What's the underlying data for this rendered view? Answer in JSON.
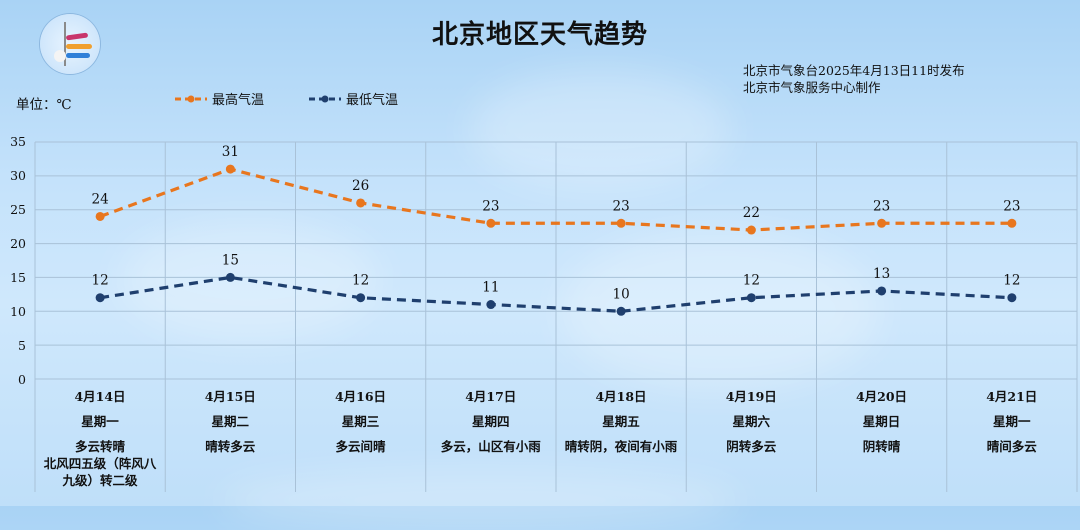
{
  "header": {
    "title": "北京地区天气趋势",
    "issuer_line1": "北京市气象台2025年4月13日11时发布",
    "issuer_line2": "北京市气象服务中心制作",
    "unit_label": "单位：℃",
    "logo": "meteorological-service-logo"
  },
  "legend": {
    "high_label": "最高气温",
    "low_label": "最低气温"
  },
  "colors": {
    "high": "#e8761e",
    "low": "#1f3f6e",
    "grid": "#a9c2d8"
  },
  "axis": {
    "y_ticks": [
      "35",
      "30",
      "25",
      "20",
      "15",
      "10",
      "5",
      "0"
    ]
  },
  "days": [
    {
      "date": "4月14日",
      "weekday": "星期一",
      "weather": "多云转晴",
      "wind": [
        "北风四五级（阵风八",
        "九级）转二级"
      ]
    },
    {
      "date": "4月15日",
      "weekday": "星期二",
      "weather": "晴转多云",
      "wind": []
    },
    {
      "date": "4月16日",
      "weekday": "星期三",
      "weather": "多云间晴",
      "wind": []
    },
    {
      "date": "4月17日",
      "weekday": "星期四",
      "weather": "多云，山区有小雨",
      "wind": []
    },
    {
      "date": "4月18日",
      "weekday": "星期五",
      "weather": "晴转阴，夜间有小雨",
      "wind": []
    },
    {
      "date": "4月19日",
      "weekday": "星期六",
      "weather": "阴转多云",
      "wind": []
    },
    {
      "date": "4月20日",
      "weekday": "星期日",
      "weather": "阴转晴",
      "wind": []
    },
    {
      "date": "4月21日",
      "weekday": "星期一",
      "weather": "晴间多云",
      "wind": []
    }
  ],
  "chart_data": {
    "type": "line",
    "title": "北京地区天气趋势",
    "ylabel": "单位：℃",
    "xlabel": "",
    "categories": [
      "4月14日",
      "4月15日",
      "4月16日",
      "4月17日",
      "4月18日",
      "4月19日",
      "4月20日",
      "4月21日"
    ],
    "series": [
      {
        "name": "最高气温",
        "values": [
          24,
          31,
          26,
          23,
          23,
          22,
          23,
          23
        ],
        "color": "#e8761e",
        "style": "dashed",
        "markers": true
      },
      {
        "name": "最低气温",
        "values": [
          12,
          15,
          12,
          11,
          10,
          12,
          13,
          12
        ],
        "color": "#1f3f6e",
        "style": "dashed",
        "markers": true
      }
    ],
    "ylim": [
      0,
      35
    ],
    "yticks": [
      0,
      5,
      10,
      15,
      20,
      25,
      30,
      35
    ],
    "grid": true,
    "data_labels": true,
    "legend_position": "top"
  }
}
